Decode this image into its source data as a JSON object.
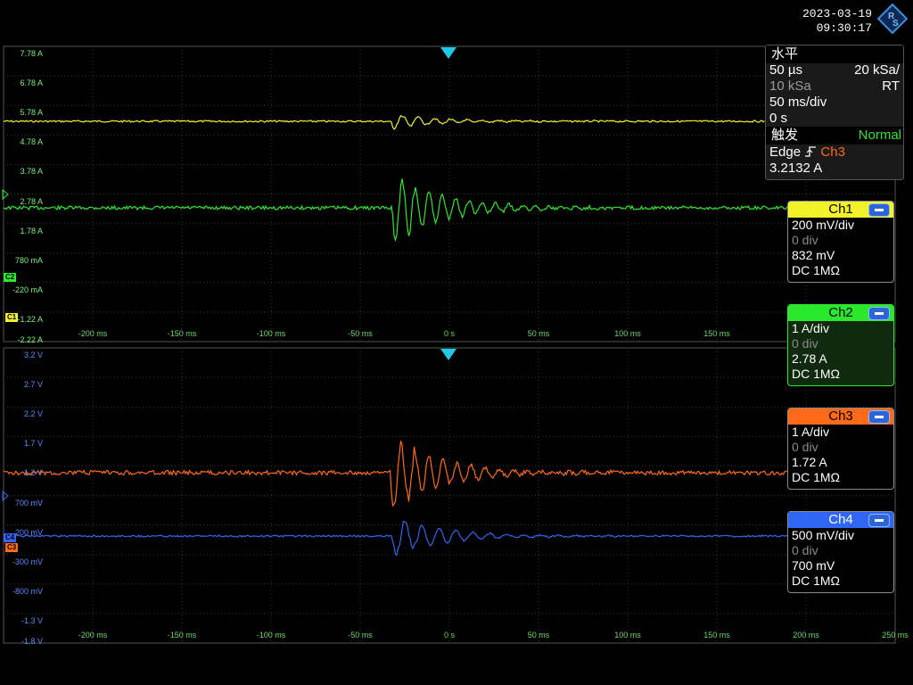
{
  "clock": {
    "date": "2023-03-19",
    "time": "09:30:17"
  },
  "colors": {
    "ch1": "#f2f22a",
    "ch2": "#2ce82c",
    "ch3": "#ff6a18",
    "ch4": "#2f66f4",
    "grid": "#3a3a3a"
  },
  "top_panel": {
    "y_labels": [
      "7.78 A",
      "6.78 A",
      "5.78 A",
      "4.78 A",
      "3.78 A",
      "2.78 A",
      "1.78 A",
      "780 mA",
      "-220 mA",
      "-1.22 A",
      "-2.22 A"
    ],
    "x_labels": [
      "-200 ms",
      "-150 ms",
      "-100 ms",
      "-50 ms",
      "0 s",
      "50 ms",
      "100 ms",
      "150 ms"
    ]
  },
  "bottom_panel": {
    "y_labels": [
      "3.2 V",
      "2.7 V",
      "2.2 V",
      "1.7 V",
      "1.2 V",
      "700 mV",
      "200 mV",
      "-300 mV",
      "-800 mV",
      "-1.3 V",
      "-1.8 V"
    ],
    "x_labels": [
      "-200 ms",
      "-150 ms",
      "-100 ms",
      "-50 ms",
      "0 s",
      "50 ms",
      "100 ms",
      "150 ms",
      "200 ms",
      "250 ms"
    ]
  },
  "markers": {
    "c1": "C1",
    "c2": "C2",
    "c3": "C3",
    "c4": "C4"
  },
  "horizontal": {
    "heading": "水平",
    "res": "50 µs",
    "rate": "20 kSa/",
    "mode": "RT",
    "points": "10 kSa",
    "scale": "50 ms/div",
    "offset": "0 s"
  },
  "trigger": {
    "heading": "触发",
    "mode": "Normal",
    "type": "Edge",
    "source": "Ch3",
    "level": "3.2132 A"
  },
  "channels": [
    {
      "name": "Ch1",
      "scale": "200 mV/div",
      "offset": "0 div",
      "position": "832 mV",
      "coupling": "DC 1MΩ"
    },
    {
      "name": "Ch2",
      "scale": "1 A/div",
      "offset": "0 div",
      "position": "2.78 A",
      "coupling": "DC 1MΩ"
    },
    {
      "name": "Ch3",
      "scale": "1 A/div",
      "offset": "0 div",
      "position": "1.72 A",
      "coupling": "DC 1MΩ"
    },
    {
      "name": "Ch4",
      "scale": "500 mV/div",
      "offset": "0 div",
      "position": "700 mV",
      "coupling": "DC 1MΩ"
    }
  ]
}
